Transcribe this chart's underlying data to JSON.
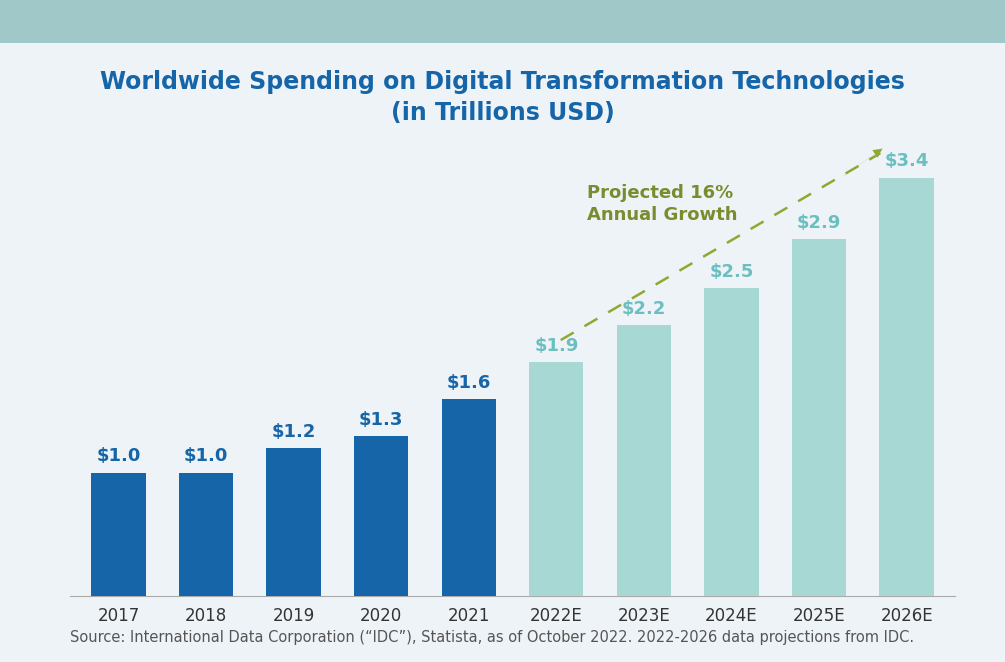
{
  "categories": [
    "2017",
    "2018",
    "2019",
    "2020",
    "2021",
    "2022E",
    "2023E",
    "2024E",
    "2025E",
    "2026E"
  ],
  "values": [
    1.0,
    1.0,
    1.2,
    1.3,
    1.6,
    1.9,
    2.2,
    2.5,
    2.9,
    3.4
  ],
  "labels": [
    "$1.0",
    "$1.0",
    "$1.2",
    "$1.3",
    "$1.6",
    "$1.9",
    "$2.2",
    "$2.5",
    "$2.9",
    "$3.4"
  ],
  "bar_color_solid": "#1565A8",
  "bar_color_light": "#A8D8D4",
  "title_line1": "Worldwide Spending on Digital Transformation Technologies",
  "title_line2": "(in Trillions USD)",
  "title_color": "#1565A8",
  "label_color_solid": "#1565A8",
  "label_color_light": "#6BBFBF",
  "annotation_text": "Projected 16%\nAnnual Growth",
  "annotation_color": "#7A8C2E",
  "arrow_color": "#8FA832",
  "source_text": "Source: International Data Corporation (“IDC”), Statista, as of October 2022. 2022-2026 data projections from IDC.",
  "top_strip_color": "#A0C8C8",
  "background_color": "#EEF3F7",
  "ylim": [
    0,
    4.2
  ],
  "title_fontsize": 17,
  "label_fontsize": 13,
  "tick_fontsize": 12,
  "source_fontsize": 10.5,
  "annotation_fontsize": 13
}
